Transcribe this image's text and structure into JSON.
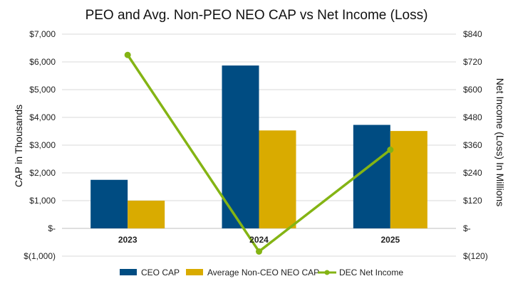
{
  "chart_data": {
    "type": "bar",
    "title": "PEO and Avg. Non-PEO NEO CAP vs Net Income (Loss)",
    "categories": [
      "2023",
      "2024",
      "2025"
    ],
    "ylabel": "CAP in Thousands",
    "y2label": "Net Income (Loss) In Millions",
    "ylim": [
      -1000,
      7000
    ],
    "y2lim": [
      -120,
      840
    ],
    "y_ticks": [
      {
        "value": -1000,
        "label": "$(1,000)"
      },
      {
        "value": 0,
        "label": "$-"
      },
      {
        "value": 1000,
        "label": "$1,000"
      },
      {
        "value": 2000,
        "label": "$2,000"
      },
      {
        "value": 3000,
        "label": "$3,000"
      },
      {
        "value": 4000,
        "label": "$4,000"
      },
      {
        "value": 5000,
        "label": "$5,000"
      },
      {
        "value": 6000,
        "label": "$6,000"
      },
      {
        "value": 7000,
        "label": "$7,000"
      }
    ],
    "y2_ticks": [
      {
        "value": -120,
        "label": "$(120)"
      },
      {
        "value": 0,
        "label": "$-"
      },
      {
        "value": 120,
        "label": "$120"
      },
      {
        "value": 240,
        "label": "$240"
      },
      {
        "value": 360,
        "label": "$360"
      },
      {
        "value": 480,
        "label": "$480"
      },
      {
        "value": 600,
        "label": "$600"
      },
      {
        "value": 720,
        "label": "$720"
      },
      {
        "value": 840,
        "label": "$840"
      }
    ],
    "grid": true,
    "legend_position": "bottom",
    "series": [
      {
        "name": "CEO CAP",
        "type": "bar",
        "axis": "left",
        "color": "#004C82",
        "values": [
          1750,
          5870,
          3730
        ]
      },
      {
        "name": "Average Non-CEO NEO CAP",
        "type": "bar",
        "axis": "left",
        "color": "#D9AB00",
        "values": [
          1000,
          3530,
          3510
        ]
      },
      {
        "name": "DEC Net Income",
        "type": "line",
        "axis": "right",
        "color": "#84B414",
        "values": [
          750,
          -100,
          340
        ]
      }
    ]
  }
}
